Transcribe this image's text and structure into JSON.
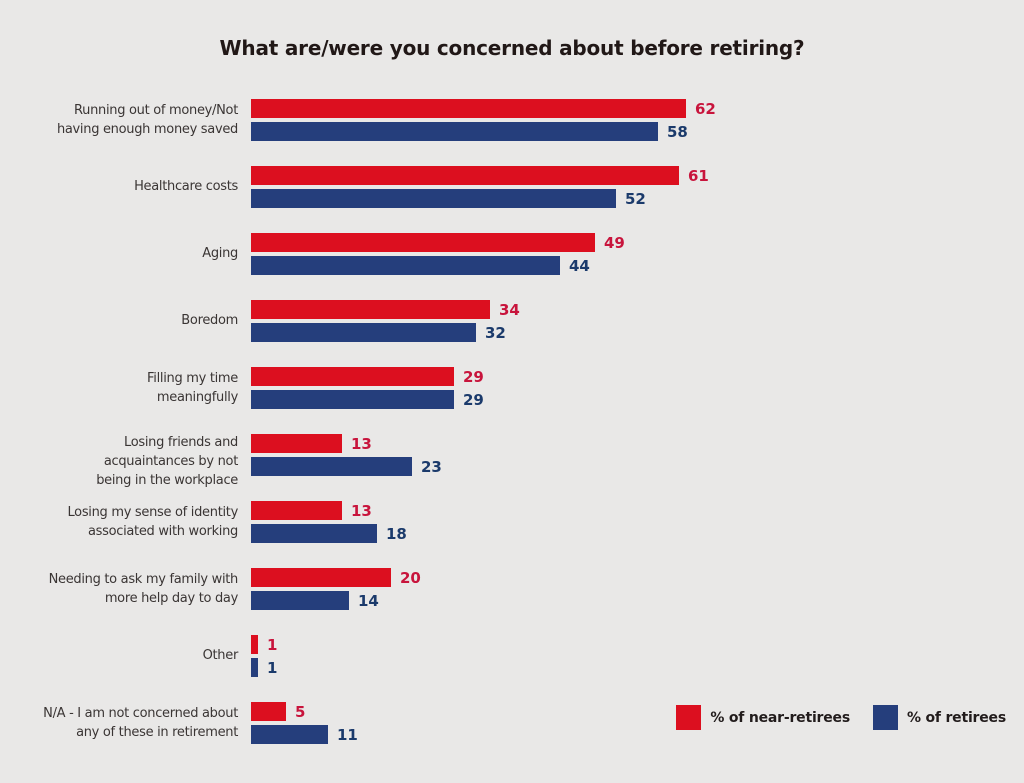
{
  "title": "What are/were you concerned about before retiring?",
  "colors": {
    "background": "#e9e8e7",
    "title_text": "#211817",
    "category_text": "#3a3534",
    "near_retirees_bar": "#dc0f1f",
    "near_retirees_value_text": "#c8143c",
    "retirees_bar": "#253e7c",
    "retirees_value_text": "#1b3a6b"
  },
  "chart_data": {
    "type": "bar",
    "orientation": "horizontal",
    "title": "What are/were you concerned about before retiring?",
    "grid": false,
    "value_labels": true,
    "legend_position": "bottom-right",
    "xlim": [
      0,
      62
    ],
    "categories": [
      [
        "Running out of money/Not",
        "having enough money saved"
      ],
      [
        "Healthcare costs"
      ],
      [
        "Aging"
      ],
      [
        "Boredom"
      ],
      [
        "Filling my time",
        "meaningfully"
      ],
      [
        "Losing friends and",
        "acquaintances by not",
        "being in the workplace"
      ],
      [
        "Losing my sense of identity",
        "associated with working"
      ],
      [
        "Needing to ask my family with",
        "more help day to day"
      ],
      [
        "Other"
      ],
      [
        "N/A - I am not concerned about",
        "any of these in retirement"
      ]
    ],
    "series": [
      {
        "name": "% of near-retirees",
        "color": "#dc0f1f",
        "label_color": "#c8143c",
        "values": [
          62,
          61,
          49,
          34,
          29,
          13,
          13,
          20,
          1,
          5
        ]
      },
      {
        "name": "% of retirees",
        "color": "#253e7c",
        "label_color": "#1b3a6b",
        "values": [
          58,
          52,
          44,
          32,
          29,
          23,
          18,
          14,
          1,
          11
        ]
      }
    ]
  }
}
